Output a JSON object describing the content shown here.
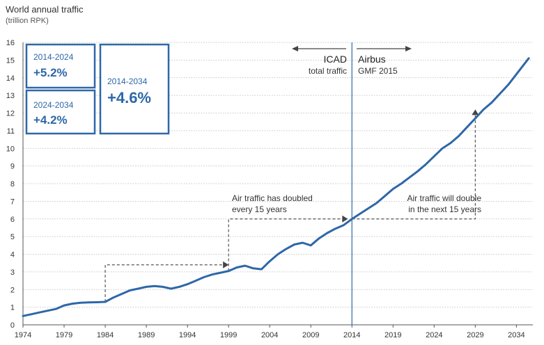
{
  "chart_data": {
    "type": "line",
    "title": "World annual traffic",
    "subtitle": "(trillion RPK)",
    "ylim": [
      0,
      16
    ],
    "yticks": [
      0,
      1,
      2,
      3,
      4,
      5,
      6,
      7,
      8,
      9,
      10,
      11,
      12,
      13,
      14,
      15,
      16
    ],
    "xlim": [
      1974,
      2036
    ],
    "xticks": [
      1974,
      1979,
      1984,
      1989,
      1994,
      1999,
      2004,
      2009,
      2014,
      2019,
      2024,
      2029,
      2034
    ],
    "grid": "horizontal dotted",
    "series": [
      {
        "color": "#2e67a8",
        "points": [
          [
            1974,
            0.5
          ],
          [
            1975,
            0.6
          ],
          [
            1976,
            0.7
          ],
          [
            1977,
            0.8
          ],
          [
            1978,
            0.9
          ],
          [
            1979,
            1.1
          ],
          [
            1980,
            1.2
          ],
          [
            1981,
            1.25
          ],
          [
            1982,
            1.27
          ],
          [
            1983,
            1.28
          ],
          [
            1984,
            1.3
          ],
          [
            1985,
            1.55
          ],
          [
            1986,
            1.75
          ],
          [
            1987,
            1.95
          ],
          [
            1988,
            2.05
          ],
          [
            1989,
            2.15
          ],
          [
            1990,
            2.2
          ],
          [
            1991,
            2.15
          ],
          [
            1992,
            2.05
          ],
          [
            1993,
            2.15
          ],
          [
            1994,
            2.3
          ],
          [
            1995,
            2.5
          ],
          [
            1996,
            2.7
          ],
          [
            1997,
            2.85
          ],
          [
            1998,
            2.95
          ],
          [
            1999,
            3.05
          ],
          [
            2000,
            3.25
          ],
          [
            2001,
            3.35
          ],
          [
            2002,
            3.2
          ],
          [
            2003,
            3.15
          ],
          [
            2004,
            3.6
          ],
          [
            2005,
            4.0
          ],
          [
            2006,
            4.3
          ],
          [
            2007,
            4.55
          ],
          [
            2008,
            4.65
          ],
          [
            2009,
            4.5
          ],
          [
            2010,
            4.9
          ],
          [
            2011,
            5.2
          ],
          [
            2012,
            5.45
          ],
          [
            2013,
            5.65
          ],
          [
            2014,
            6.0
          ],
          [
            2015,
            6.3
          ],
          [
            2016,
            6.6
          ],
          [
            2017,
            6.9
          ],
          [
            2018,
            7.3
          ],
          [
            2019,
            7.7
          ],
          [
            2020,
            8.0
          ],
          [
            2021,
            8.35
          ],
          [
            2022,
            8.7
          ],
          [
            2023,
            9.1
          ],
          [
            2024,
            9.55
          ],
          [
            2025,
            10.0
          ],
          [
            2026,
            10.3
          ],
          [
            2027,
            10.7
          ],
          [
            2028,
            11.2
          ],
          [
            2029,
            11.7
          ],
          [
            2030,
            12.2
          ],
          [
            2031,
            12.6
          ],
          [
            2032,
            13.1
          ],
          [
            2033,
            13.6
          ],
          [
            2034,
            14.2
          ],
          [
            2035,
            14.8
          ],
          [
            2035.5,
            15.1
          ]
        ]
      }
    ],
    "divider_year": 2014,
    "left_label": {
      "big": "ICAD",
      "small": "total traffic"
    },
    "right_label": {
      "big": "Airbus",
      "small": "GMF 2015"
    },
    "boxes": [
      {
        "period": "2014-2024",
        "value": "+5.2%"
      },
      {
        "period": "2024-2034",
        "value": "+4.2%"
      },
      {
        "period": "2014-2034",
        "value": "+4.6%"
      }
    ],
    "annotations": [
      {
        "lines": [
          "Air traffic has doubled",
          "every 15 years"
        ],
        "align": "left"
      },
      {
        "lines": [
          "Air traffic will double",
          "in the next 15 years"
        ],
        "align": "right"
      }
    ],
    "doubling_steps": [
      {
        "from": [
          1984,
          1.3
        ],
        "to": [
          1999,
          3.4
        ]
      },
      {
        "from": [
          1999,
          6.0
        ],
        "to": [
          2013.5,
          6.0
        ]
      },
      {
        "from": [
          2014,
          6.0
        ],
        "to": [
          2029,
          12.2
        ]
      }
    ]
  }
}
